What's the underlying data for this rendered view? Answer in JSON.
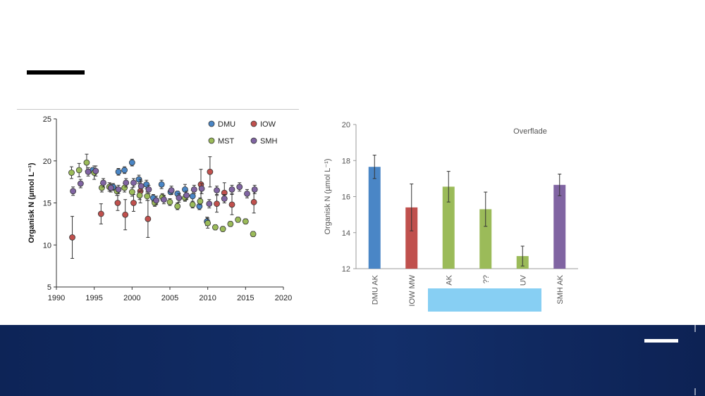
{
  "colors": {
    "DMU": "#4a86c6",
    "IOW": "#c0504d",
    "MST": "#9bbb59",
    "SMH": "#8064a2",
    "footer": "#102a62",
    "cover_box": "#87cff3"
  },
  "chart_data": [
    {
      "type": "scatter",
      "title": "",
      "xlabel": "",
      "ylabel": "Organisk N (µmol L⁻¹)",
      "xlim": [
        1990,
        2020
      ],
      "ylim": [
        5,
        25
      ],
      "xticks": [
        "1990",
        "1995",
        "2000",
        "2005",
        "2010",
        "2015",
        "2020"
      ],
      "yticks": [
        "5",
        "10",
        "15",
        "20",
        "25"
      ],
      "grid": false,
      "legend": "top-right",
      "series": [
        {
          "name": "DMU",
          "color_key": "DMU",
          "points": [
            {
              "x": 1994.8,
              "y": 18.9,
              "err": 0.3
            },
            {
              "x": 1997.5,
              "y": 16.9,
              "err": 0.4
            },
            {
              "x": 1998.2,
              "y": 18.7,
              "err": 0.4
            },
            {
              "x": 1999.0,
              "y": 18.9,
              "err": 0.4
            },
            {
              "x": 2000.0,
              "y": 19.8,
              "err": 0.4
            },
            {
              "x": 2000.9,
              "y": 17.8,
              "err": 0.5
            },
            {
              "x": 2001.9,
              "y": 17.2,
              "err": 0.5
            },
            {
              "x": 2002.8,
              "y": 15.6,
              "err": 0.4
            },
            {
              "x": 2003.9,
              "y": 17.2,
              "err": 0.5
            },
            {
              "x": 2005.1,
              "y": 16.3,
              "err": 0.3
            },
            {
              "x": 2006.0,
              "y": 16.1,
              "err": 0.3
            },
            {
              "x": 2007.0,
              "y": 16.6,
              "err": 0.6
            },
            {
              "x": 2008.0,
              "y": 15.8,
              "err": 0.7
            },
            {
              "x": 2008.9,
              "y": 14.6,
              "err": 0.4
            },
            {
              "x": 2009.9,
              "y": 12.8,
              "err": 0.5
            }
          ]
        },
        {
          "name": "IOW",
          "color_key": "IOW",
          "points": [
            {
              "x": 1992.1,
              "y": 10.9,
              "err": 2.5
            },
            {
              "x": 1995.9,
              "y": 13.7,
              "err": 1.2
            },
            {
              "x": 1998.1,
              "y": 15.0,
              "err": 0.9
            },
            {
              "x": 1999.1,
              "y": 13.6,
              "err": 1.8
            },
            {
              "x": 2000.2,
              "y": 15.0,
              "err": 1.0
            },
            {
              "x": 2001.1,
              "y": 16.4,
              "err": 1.4
            },
            {
              "x": 2002.1,
              "y": 13.1,
              "err": 2.2
            },
            {
              "x": 2009.1,
              "y": 17.2,
              "err": 1.8
            },
            {
              "x": 2010.3,
              "y": 18.7,
              "err": 1.8
            },
            {
              "x": 2011.2,
              "y": 14.9,
              "err": 1.0
            },
            {
              "x": 2012.2,
              "y": 16.2,
              "err": 1.2
            },
            {
              "x": 2013.2,
              "y": 14.8,
              "err": 1.2
            },
            {
              "x": 2016.1,
              "y": 15.1,
              "err": 1.3
            }
          ]
        },
        {
          "name": "MST",
          "color_key": "MST",
          "points": [
            {
              "x": 1992.0,
              "y": 18.6,
              "err": 0.7
            },
            {
              "x": 1993.0,
              "y": 18.9,
              "err": 0.8
            },
            {
              "x": 1994.0,
              "y": 19.8,
              "err": 1.0
            },
            {
              "x": 1995.0,
              "y": 18.6,
              "err": 0.8
            },
            {
              "x": 1996.0,
              "y": 16.8,
              "err": 0.5
            },
            {
              "x": 1997.0,
              "y": 16.9,
              "err": 0.5
            },
            {
              "x": 1998.0,
              "y": 16.4,
              "err": 0.5
            },
            {
              "x": 1999.0,
              "y": 16.8,
              "err": 0.5
            },
            {
              "x": 2000.0,
              "y": 16.3,
              "err": 0.5
            },
            {
              "x": 2001.0,
              "y": 15.9,
              "err": 0.5
            },
            {
              "x": 2002.0,
              "y": 15.8,
              "err": 0.5
            },
            {
              "x": 2003.0,
              "y": 15.0,
              "err": 0.4
            },
            {
              "x": 2004.0,
              "y": 15.7,
              "err": 0.4
            },
            {
              "x": 2005.0,
              "y": 15.1,
              "err": 0.4
            },
            {
              "x": 2006.0,
              "y": 14.6,
              "err": 0.4
            },
            {
              "x": 2007.0,
              "y": 15.6,
              "err": 0.4
            },
            {
              "x": 2008.0,
              "y": 14.8,
              "err": 0.4
            },
            {
              "x": 2009.0,
              "y": 15.2,
              "err": 0.4
            },
            {
              "x": 2010.0,
              "y": 12.6,
              "err": 0.6
            },
            {
              "x": 2011.0,
              "y": 12.1,
              "err": 0.3
            },
            {
              "x": 2012.0,
              "y": 11.9,
              "err": 0.3
            },
            {
              "x": 2013.0,
              "y": 12.5,
              "err": 0.3
            },
            {
              "x": 2014.0,
              "y": 13.0,
              "err": 0.3
            },
            {
              "x": 2015.0,
              "y": 12.8,
              "err": 0.3
            },
            {
              "x": 2016.0,
              "y": 11.3,
              "err": 0.3
            }
          ]
        },
        {
          "name": "SMH",
          "color_key": "SMH",
          "points": [
            {
              "x": 1992.2,
              "y": 16.4,
              "err": 0.5
            },
            {
              "x": 1993.2,
              "y": 17.3,
              "err": 0.5
            },
            {
              "x": 1994.2,
              "y": 18.7,
              "err": 0.5
            },
            {
              "x": 1995.2,
              "y": 18.8,
              "err": 0.6
            },
            {
              "x": 1996.2,
              "y": 17.4,
              "err": 0.5
            },
            {
              "x": 1997.2,
              "y": 16.8,
              "err": 0.5
            },
            {
              "x": 1998.2,
              "y": 16.6,
              "err": 0.5
            },
            {
              "x": 1999.2,
              "y": 17.4,
              "err": 0.5
            },
            {
              "x": 2000.2,
              "y": 17.4,
              "err": 0.5
            },
            {
              "x": 2001.2,
              "y": 17.0,
              "err": 0.6
            },
            {
              "x": 2002.2,
              "y": 16.6,
              "err": 0.5
            },
            {
              "x": 2003.2,
              "y": 15.3,
              "err": 0.5
            },
            {
              "x": 2004.2,
              "y": 15.4,
              "err": 0.5
            },
            {
              "x": 2005.2,
              "y": 16.5,
              "err": 0.5
            },
            {
              "x": 2006.2,
              "y": 15.6,
              "err": 0.5
            },
            {
              "x": 2007.2,
              "y": 15.9,
              "err": 0.5
            },
            {
              "x": 2008.2,
              "y": 16.6,
              "err": 0.5
            },
            {
              "x": 2009.2,
              "y": 16.7,
              "err": 0.6
            },
            {
              "x": 2010.2,
              "y": 14.9,
              "err": 0.5
            },
            {
              "x": 2011.2,
              "y": 16.5,
              "err": 0.5
            },
            {
              "x": 2012.2,
              "y": 15.5,
              "err": 0.5
            },
            {
              "x": 2013.2,
              "y": 16.6,
              "err": 0.5
            },
            {
              "x": 2014.2,
              "y": 16.9,
              "err": 0.5
            },
            {
              "x": 2015.2,
              "y": 16.1,
              "err": 0.5
            },
            {
              "x": 2016.2,
              "y": 16.6,
              "err": 0.5
            }
          ]
        }
      ]
    },
    {
      "type": "bar",
      "title": "Overflade",
      "xlabel": "",
      "ylabel": "Organisk N (µmol L⁻¹)",
      "ylim": [
        12,
        20
      ],
      "yticks": [
        "12",
        "14",
        "16",
        "18",
        "20"
      ],
      "grid": false,
      "categories": [
        "DMU AK",
        "IOW MW",
        "AK",
        "??",
        "UV",
        "SMH AK"
      ],
      "values": [
        17.65,
        15.4,
        16.55,
        15.3,
        12.7,
        16.65
      ],
      "errors": [
        0.65,
        1.3,
        0.85,
        0.95,
        0.55,
        0.6
      ],
      "color_keys": [
        "DMU",
        "IOW",
        "MST",
        "MST",
        "MST",
        "SMH"
      ]
    }
  ]
}
